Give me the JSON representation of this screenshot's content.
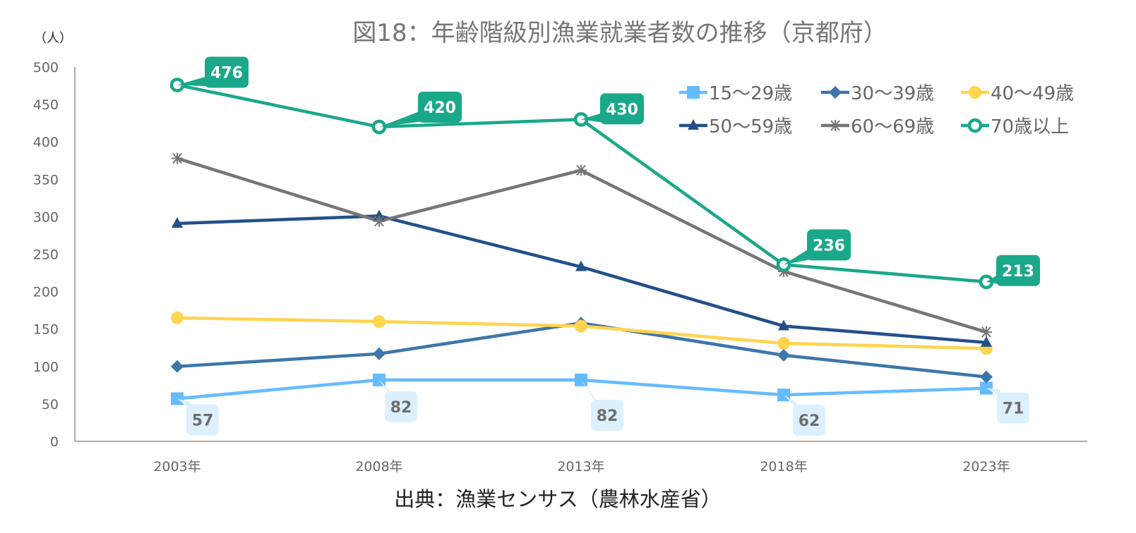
{
  "chart_data": {
    "type": "line",
    "title": "図18：年齢階級別漁業就業者数の推移（京都府）",
    "ylabel": "（人）",
    "xlabel": "",
    "source": "出典：漁業センサス（農林水産省）",
    "categories": [
      "2003年",
      "2008年",
      "2013年",
      "2018年",
      "2023年"
    ],
    "ylim": [
      0,
      500
    ],
    "yticks": [
      0,
      50,
      100,
      150,
      200,
      250,
      300,
      350,
      400,
      450,
      500
    ],
    "grid": false,
    "legend_position": "top-right",
    "series": [
      {
        "name": "15～29歳",
        "color": "#66BBFF",
        "marker": "square",
        "values": [
          57,
          82,
          82,
          62,
          71
        ],
        "labels_shown": true,
        "label_style": "light"
      },
      {
        "name": "30～39歳",
        "color": "#3C76AB",
        "marker": "diamond",
        "values": [
          100,
          117,
          158,
          115,
          86
        ],
        "labels_shown": false
      },
      {
        "name": "40～49歳",
        "color": "#FFD44F",
        "marker": "circle",
        "values": [
          165,
          160,
          154,
          131,
          124
        ],
        "labels_shown": false
      },
      {
        "name": "50～59歳",
        "color": "#24508A",
        "marker": "triangle",
        "values": [
          291,
          301,
          233,
          154,
          132
        ],
        "labels_shown": false
      },
      {
        "name": "60～69歳",
        "color": "#767676",
        "marker": "asterisk",
        "values": [
          378,
          294,
          362,
          227,
          146
        ],
        "labels_shown": false
      },
      {
        "name": "70歳以上",
        "color": "#19A88A",
        "marker": "ring",
        "values": [
          476,
          420,
          430,
          236,
          213
        ],
        "labels_shown": true,
        "label_style": "dark"
      }
    ],
    "data_labels": {
      "15～29歳": [
        "57",
        "82",
        "82",
        "62",
        "71"
      ],
      "70歳以上": [
        "476",
        "420",
        "430",
        "236",
        "213"
      ]
    },
    "label_colors": {
      "dark_bg": "#19A88A",
      "light_bg": "#DDF0FF"
    }
  }
}
